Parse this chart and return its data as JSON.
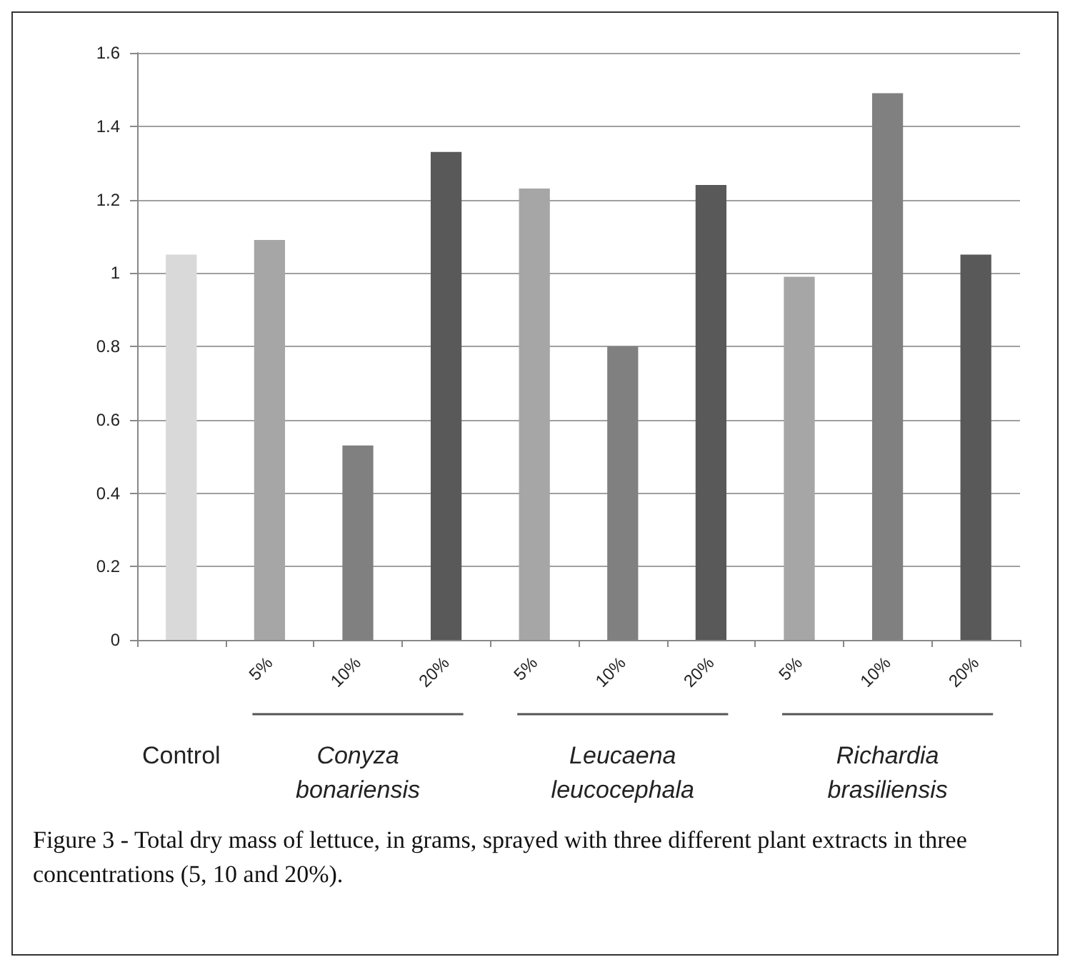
{
  "chart_data": {
    "type": "bar",
    "title": "Figure 3 - Total dry mass of lettuce, in grams, sprayed with three different plant extracts in three concentrations (5, 10 and 20%).",
    "categories": [
      null,
      "5%",
      "10%",
      "20%",
      "5%",
      "10%",
      "20%",
      "5%",
      "10%",
      "20%"
    ],
    "values": [
      1.05,
      1.09,
      0.53,
      1.33,
      1.23,
      0.8,
      1.24,
      0.99,
      1.49,
      1.05
    ],
    "colors": [
      "#d9d9d9",
      "#a6a6a6",
      "#808080",
      "#595959",
      "#a6a6a6",
      "#808080",
      "#595959",
      "#a6a6a6",
      "#808080",
      "#595959"
    ],
    "annotations": [
      "Control",
      "Conyza bonariensis",
      "Leucaena leucocephala",
      "Richardia brasiliensis"
    ],
    "ylim": [
      0,
      1.6
    ],
    "yticks": [
      0,
      0.2,
      0.4,
      0.6,
      0.8,
      1,
      1.2,
      1.4,
      1.6
    ],
    "grid": "y"
  }
}
